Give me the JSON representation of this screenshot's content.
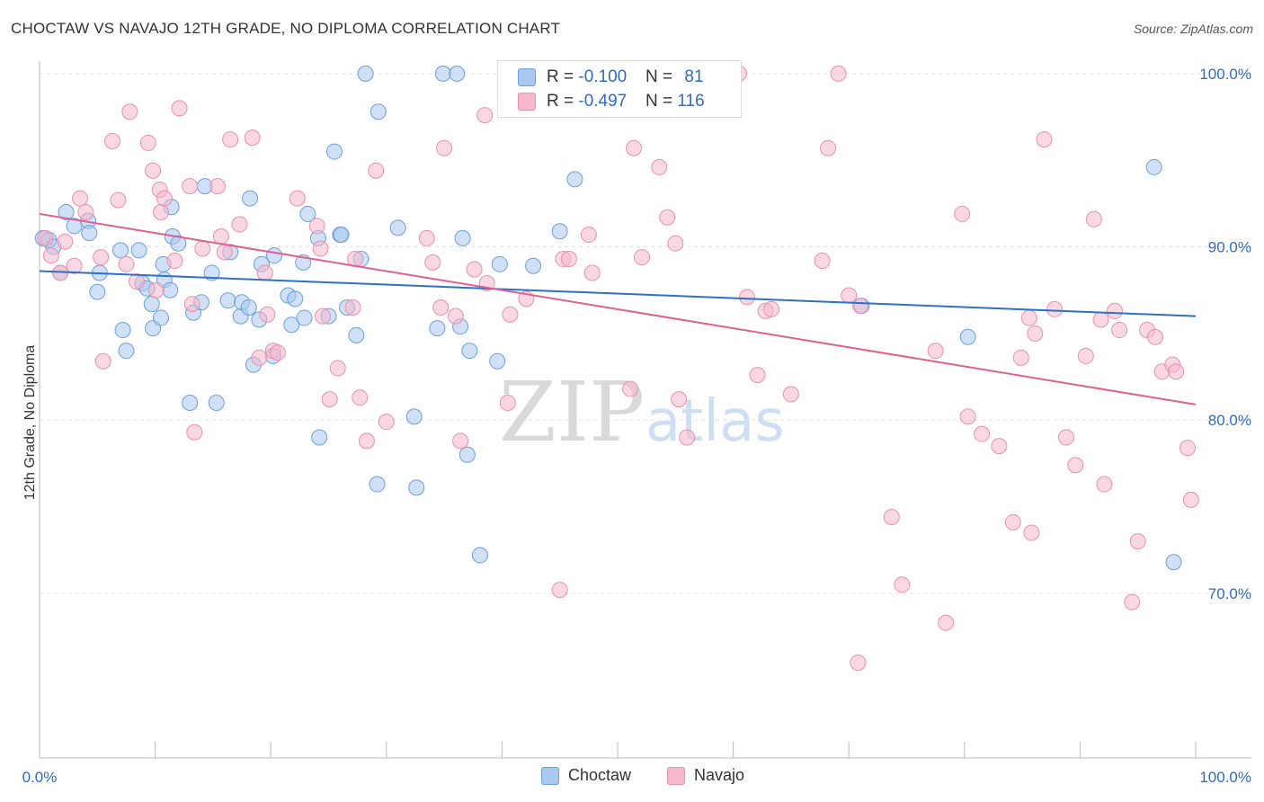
{
  "header": {
    "title": "CHOCTAW VS NAVAJO 12TH GRADE, NO DIPLOMA CORRELATION CHART",
    "source": "Source: ZipAtlas.com"
  },
  "watermark": {
    "zip": "ZIP",
    "atlas": "atlas"
  },
  "legend_top": {
    "rows": [
      {
        "r_label": "R = ",
        "r_value": "-0.100",
        "n_label": "N = ",
        "n_value": "81"
      },
      {
        "r_label": "R = ",
        "r_value": "-0.497",
        "n_label": "N = ",
        "n_value": "116"
      }
    ]
  },
  "colors": {
    "choctaw_fill": "#a9c8f0",
    "choctaw_stroke": "#6d9fd8",
    "choctaw_line": "#2b70c9",
    "navajo_fill": "#f5b8cc",
    "navajo_stroke": "#e890ad",
    "navajo_line": "#e0608f",
    "value_text": "#2f6cc0",
    "grid": "#e3e3e3"
  },
  "chart_data": {
    "type": "scatter",
    "title": "CHOCTAW VS NAVAJO 12TH GRADE, NO DIPLOMA CORRELATION CHART",
    "xlabel": "",
    "ylabel": "12th Grade, No Diploma",
    "xlim": [
      0,
      100
    ],
    "ylim": [
      60.5,
      100.2
    ],
    "x_tick_labels": [
      "0.0%",
      "100.0%"
    ],
    "y_ticks": [
      70,
      80,
      90,
      100
    ],
    "y_tick_labels": [
      "70.0%",
      "80.0%",
      "90.0%",
      "100.0%"
    ],
    "grid": true,
    "legend": "bottom-center",
    "series": [
      {
        "name": "Choctaw",
        "trend": {
          "x": [
            0,
            100
          ],
          "y": [
            88.6,
            86.0
          ]
        },
        "x": [
          0.3,
          0.8,
          1.2,
          1.8,
          2.3,
          3.0,
          4.2,
          4.3,
          5.0,
          5.2,
          7.0,
          7.2,
          7.5,
          8.6,
          8.9,
          9.3,
          9.7,
          9.8,
          10.5,
          10.7,
          10.8,
          11.3,
          11.4,
          11.5,
          12.0,
          13.0,
          13.3,
          14.0,
          14.3,
          14.9,
          15.3,
          16.3,
          16.5,
          17.4,
          17.5,
          18.1,
          18.2,
          18.5,
          19.0,
          19.2,
          20.2,
          20.3,
          21.5,
          21.8,
          22.1,
          22.8,
          22.9,
          23.2,
          24.1,
          24.2,
          25.0,
          25.5,
          26.0,
          26.1,
          26.6,
          27.4,
          27.8,
          28.2,
          29.2,
          29.3,
          31.0,
          32.4,
          32.6,
          34.4,
          34.9,
          36.1,
          36.4,
          36.6,
          37.0,
          37.2,
          38.1,
          39.6,
          39.8,
          42.7,
          45.0,
          46.3,
          59.7,
          71.1,
          80.3,
          96.4,
          98.1
        ],
        "y": [
          90.5,
          90.4,
          90.0,
          88.5,
          92.0,
          91.2,
          91.5,
          90.8,
          87.4,
          88.5,
          89.8,
          85.2,
          84.0,
          89.8,
          87.9,
          87.6,
          86.7,
          85.3,
          85.9,
          89.0,
          88.1,
          87.5,
          92.3,
          90.6,
          90.2,
          81.0,
          86.2,
          86.8,
          93.5,
          88.5,
          81.0,
          86.9,
          89.7,
          86.0,
          86.8,
          86.5,
          92.8,
          83.2,
          85.8,
          89.0,
          83.7,
          89.5,
          87.2,
          85.5,
          87.0,
          89.1,
          85.9,
          91.9,
          90.5,
          79.0,
          86.0,
          95.5,
          90.7,
          90.7,
          86.5,
          84.9,
          89.3,
          100.0,
          76.3,
          97.8,
          91.1,
          80.2,
          76.1,
          85.3,
          100.0,
          100.0,
          85.4,
          90.5,
          78.0,
          84.0,
          72.2,
          83.4,
          89.0,
          88.9,
          90.9,
          93.9,
          100.0,
          86.6,
          84.8,
          94.6,
          71.8
        ]
      },
      {
        "name": "Navajo",
        "trend": {
          "x": [
            0,
            100
          ],
          "y": [
            91.9,
            80.9
          ]
        },
        "x": [
          0.5,
          1.0,
          1.8,
          2.2,
          3.0,
          3.5,
          4.0,
          5.3,
          5.5,
          6.3,
          6.8,
          7.5,
          7.8,
          8.4,
          9.4,
          9.8,
          10.1,
          10.4,
          10.5,
          10.8,
          11.7,
          12.1,
          13.0,
          13.2,
          13.4,
          14.1,
          15.4,
          15.7,
          16.0,
          16.5,
          17.3,
          18.4,
          19.0,
          19.5,
          19.7,
          20.2,
          20.6,
          22.3,
          24.0,
          24.3,
          24.5,
          25.1,
          25.8,
          27.1,
          27.3,
          27.7,
          28.3,
          29.1,
          30.0,
          33.5,
          34.0,
          34.7,
          35.0,
          36.0,
          36.4,
          37.6,
          38.5,
          38.7,
          40.5,
          40.7,
          42.1,
          45.0,
          45.3,
          45.8,
          46.7,
          47.5,
          47.8,
          51.1,
          51.4,
          52.1,
          53.6,
          54.3,
          55.0,
          55.3,
          56.0,
          57.0,
          60.5,
          61.2,
          62.1,
          62.8,
          63.3,
          65.0,
          67.7,
          68.2,
          69.1,
          70.0,
          70.8,
          71.0,
          73.7,
          74.6,
          77.5,
          78.4,
          79.8,
          80.3,
          81.5,
          83.0,
          84.2,
          84.9,
          85.6,
          85.8,
          86.1,
          86.9,
          87.8,
          88.8,
          89.6,
          90.5,
          91.2,
          91.8,
          92.1,
          93.0,
          93.4,
          94.5,
          95.0,
          95.8,
          96.5,
          97.1,
          98.0,
          98.3,
          99.3,
          99.6
        ],
        "y": [
          90.5,
          89.5,
          88.5,
          90.3,
          88.9,
          92.8,
          92.0,
          89.4,
          83.4,
          96.1,
          92.7,
          89.0,
          97.8,
          88.0,
          96.0,
          94.4,
          87.5,
          93.3,
          92.0,
          92.8,
          89.2,
          98.0,
          93.5,
          86.7,
          79.3,
          89.9,
          93.5,
          90.6,
          89.7,
          96.2,
          91.3,
          96.3,
          83.6,
          88.5,
          86.1,
          84.0,
          83.9,
          92.8,
          91.2,
          89.9,
          86.0,
          81.2,
          83.0,
          86.5,
          89.3,
          81.3,
          78.8,
          94.4,
          79.9,
          90.5,
          89.1,
          86.5,
          95.7,
          86.0,
          78.8,
          88.7,
          97.6,
          87.9,
          81.0,
          86.1,
          87.0,
          70.2,
          89.3,
          89.3,
          100.0,
          90.7,
          88.5,
          81.8,
          95.7,
          89.4,
          94.6,
          91.7,
          90.2,
          81.2,
          79.0,
          100.0,
          100.0,
          87.1,
          82.6,
          86.3,
          86.4,
          81.5,
          89.2,
          95.7,
          100.0,
          87.2,
          66.0,
          86.6,
          74.4,
          70.5,
          84.0,
          68.3,
          91.9,
          80.2,
          79.2,
          78.5,
          74.1,
          83.6,
          85.9,
          73.5,
          85.0,
          96.2,
          86.4,
          79.0,
          77.4,
          83.7,
          91.6,
          85.8,
          76.3,
          86.3,
          85.2,
          69.5,
          73.0,
          85.2,
          84.8,
          82.8,
          83.2,
          82.8,
          78.4,
          75.4
        ]
      }
    ]
  },
  "legend_bottom": {
    "items": [
      "Choctaw",
      "Navajo"
    ]
  }
}
